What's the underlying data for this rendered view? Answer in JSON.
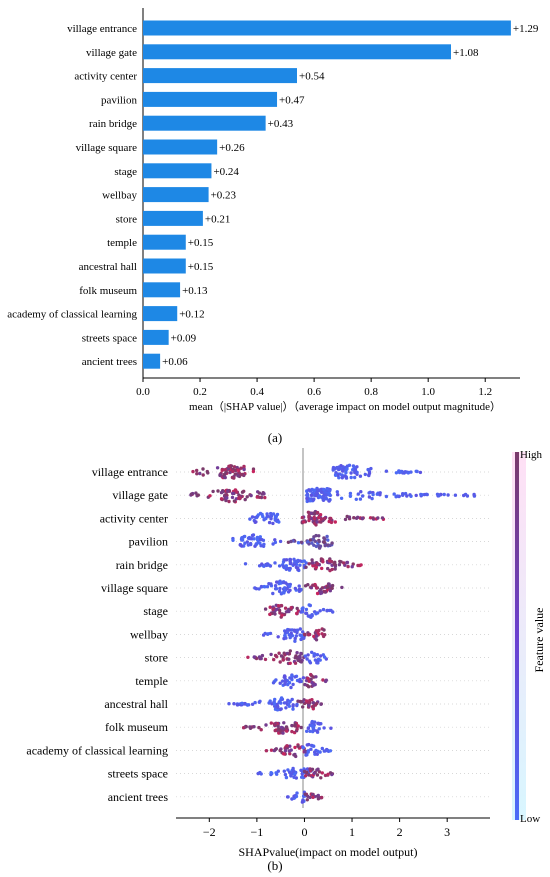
{
  "panel_a": {
    "caption": "(a)",
    "chart_data": {
      "type": "bar",
      "orientation": "horizontal",
      "categories": [
        "village entrance",
        "village gate",
        "activity center",
        "pavilion",
        "rain bridge",
        "village square",
        "stage",
        "wellbay",
        "store",
        "temple",
        "ancestral hall",
        "folk museum",
        "academy of classical learning",
        "streets space",
        "ancient trees"
      ],
      "values": [
        1.29,
        1.08,
        0.54,
        0.47,
        0.43,
        0.26,
        0.24,
        0.23,
        0.21,
        0.15,
        0.15,
        0.13,
        0.12,
        0.09,
        0.06
      ],
      "value_labels": [
        "+1.29",
        "+1.08",
        "+0.54",
        "+0.47",
        "+0.43",
        "+0.26",
        "+0.24",
        "+0.23",
        "+0.21",
        "+0.15",
        "+0.15",
        "+0.13",
        "+0.12",
        "+0.09",
        "+0.06"
      ],
      "xlabel": "mean（|SHAP value|）（average impact on model output magnitude）",
      "xlim": [
        0,
        1.35
      ],
      "xticks": [
        0.0,
        0.2,
        0.4,
        0.6,
        0.8,
        1.0,
        1.2
      ],
      "xtick_labels": [
        "0.0",
        "0.2",
        "0.4",
        "0.6",
        "0.8",
        "1.0",
        "1.2"
      ],
      "bar_color": "#1e88e5"
    }
  },
  "panel_b": {
    "caption": "(b)",
    "chart_data": {
      "type": "scatter",
      "subtype": "beeswarm",
      "categories": [
        "village entrance",
        "village gate",
        "activity center",
        "pavilion",
        "rain bridge",
        "village square",
        "stage",
        "wellbay",
        "store",
        "temple",
        "ancestral hall",
        "folk museum",
        "academy of classical learning",
        "streets space",
        "ancient trees"
      ],
      "xlabel": "SHAPvalue(impact on model output)",
      "xlim": [
        -2.7,
        3.9
      ],
      "xticks": [
        -2,
        -1,
        0,
        1,
        2,
        3
      ],
      "xtick_labels": [
        "−2",
        "−1",
        "0",
        "1",
        "2",
        "3"
      ],
      "colorbar": {
        "label": "Feature value",
        "high": "High",
        "low": "Low",
        "high_color": "#7a3b6a",
        "mid_color": "#6a3fd0",
        "low_color": "#4a6cf7"
      },
      "series": [
        {
          "feature": "village entrance",
          "clusters": [
            {
              "low": -2.4,
              "high": -0.8,
              "center": -1.5,
              "color": "high"
            },
            {
              "low": 0.6,
              "high": 2.5,
              "center": 0.9,
              "color": "low"
            }
          ]
        },
        {
          "feature": "village gate",
          "clusters": [
            {
              "low": -2.4,
              "high": -0.8,
              "center": -1.5,
              "color": "high"
            },
            {
              "low": 0.2,
              "high": 3.6,
              "center": 0.3,
              "color": "low"
            }
          ]
        },
        {
          "feature": "activity center",
          "clusters": [
            {
              "low": -1.2,
              "high": -0.4,
              "center": -0.8,
              "color": "low"
            },
            {
              "low": 0.0,
              "high": 1.7,
              "center": 0.2,
              "color": "high"
            }
          ]
        },
        {
          "feature": "pavilion",
          "clusters": [
            {
              "low": -1.6,
              "high": -0.5,
              "center": -1.1,
              "color": "low"
            },
            {
              "low": -0.4,
              "high": 0.6,
              "center": 0.3,
              "color": "mixed"
            }
          ]
        },
        {
          "feature": "rain bridge",
          "clusters": [
            {
              "low": -1.3,
              "high": -0.1,
              "center": -0.2,
              "color": "low"
            },
            {
              "low": 0.0,
              "high": 1.2,
              "center": 0.4,
              "color": "high"
            }
          ]
        },
        {
          "feature": "village square",
          "clusters": [
            {
              "low": -1.1,
              "high": 0.0,
              "center": -0.5,
              "color": "low"
            },
            {
              "low": 0.0,
              "high": 0.8,
              "center": 0.3,
              "color": "high"
            }
          ]
        },
        {
          "feature": "stage",
          "clusters": [
            {
              "low": -0.9,
              "high": 0.0,
              "center": -0.5,
              "color": "high"
            },
            {
              "low": 0.0,
              "high": 0.6,
              "center": 0.1,
              "color": "low"
            }
          ]
        },
        {
          "feature": "wellbay",
          "clusters": [
            {
              "low": -0.9,
              "high": 0.0,
              "center": -0.2,
              "color": "low"
            },
            {
              "low": 0.0,
              "high": 0.5,
              "center": 0.3,
              "color": "high"
            }
          ]
        },
        {
          "feature": "store",
          "clusters": [
            {
              "low": -1.2,
              "high": 0.0,
              "center": -0.3,
              "color": "high"
            },
            {
              "low": 0.0,
              "high": 0.5,
              "center": 0.2,
              "color": "low"
            }
          ]
        },
        {
          "feature": "temple",
          "clusters": [
            {
              "low": -0.7,
              "high": 0.0,
              "center": -0.3,
              "color": "low"
            },
            {
              "low": 0.0,
              "high": 0.5,
              "center": 0.1,
              "color": "high"
            }
          ]
        },
        {
          "feature": "ancestral hall",
          "clusters": [
            {
              "low": -1.6,
              "high": -0.2,
              "center": -0.4,
              "color": "low"
            },
            {
              "low": -0.2,
              "high": 0.4,
              "center": 0.1,
              "color": "high"
            }
          ]
        },
        {
          "feature": "folk museum",
          "clusters": [
            {
              "low": -1.3,
              "high": 0.0,
              "center": -0.4,
              "color": "high"
            },
            {
              "low": 0.0,
              "high": 0.6,
              "center": 0.2,
              "color": "low"
            }
          ]
        },
        {
          "feature": "academy of classical learning",
          "clusters": [
            {
              "low": -0.8,
              "high": 0.0,
              "center": -0.2,
              "color": "high"
            },
            {
              "low": 0.0,
              "high": 0.6,
              "center": 0.1,
              "color": "low"
            }
          ]
        },
        {
          "feature": "streets space",
          "clusters": [
            {
              "low": -1.0,
              "high": 0.0,
              "center": -0.1,
              "color": "low"
            },
            {
              "low": 0.0,
              "high": 0.6,
              "center": 0.2,
              "color": "high"
            }
          ]
        },
        {
          "feature": "ancient trees",
          "clusters": [
            {
              "low": -0.4,
              "high": 0.0,
              "center": -0.1,
              "color": "low"
            },
            {
              "low": 0.0,
              "high": 0.4,
              "center": 0.1,
              "color": "high"
            }
          ]
        }
      ]
    }
  }
}
